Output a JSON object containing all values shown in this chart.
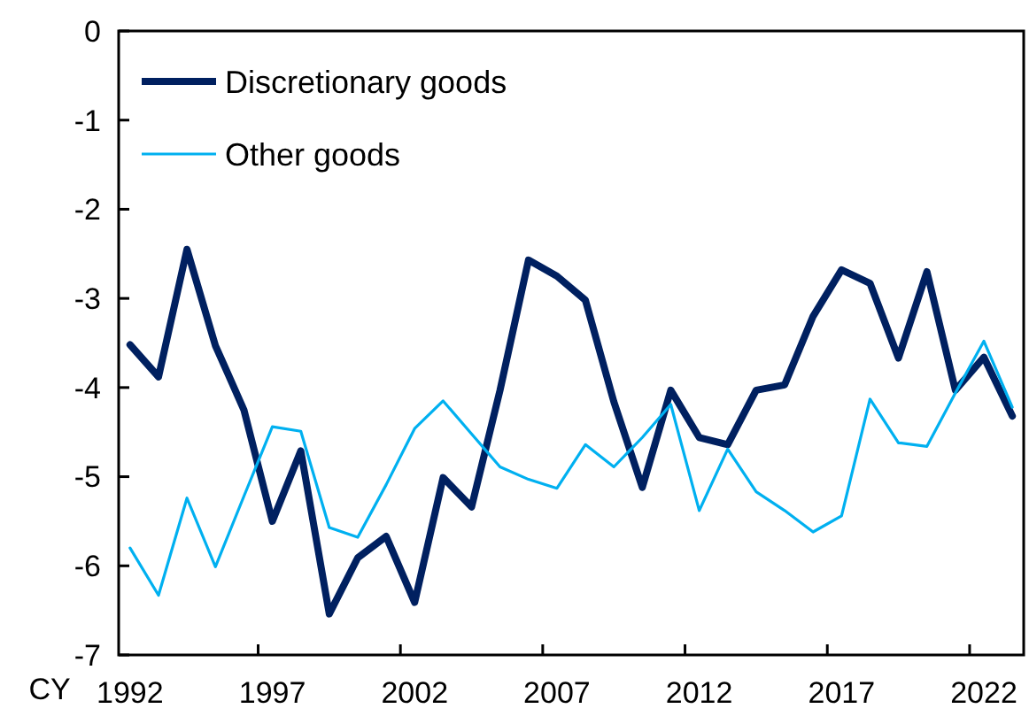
{
  "chart_data": {
    "type": "line",
    "xlabel": "CY",
    "categories": [
      "1992",
      null,
      null,
      null,
      null,
      "1997",
      null,
      null,
      null,
      null,
      "2002",
      null,
      null,
      null,
      null,
      "2007",
      null,
      null,
      null,
      null,
      "2012",
      null,
      null,
      null,
      null,
      "2017",
      null,
      null,
      null,
      null,
      "2022",
      null
    ],
    "series": [
      {
        "name": "Discretionary goods",
        "color": "#002060",
        "values": [
          -3.52,
          -3.88,
          -2.45,
          -3.53,
          -4.25,
          -5.5,
          -4.71,
          -6.54,
          -5.91,
          -5.67,
          -6.41,
          -5.01,
          -5.34,
          -4.03,
          -2.57,
          -2.75,
          -3.02,
          -4.16,
          -5.12,
          -4.03,
          -4.56,
          -4.64,
          -4.03,
          -3.97,
          -3.2,
          -2.68,
          -2.83,
          -3.67,
          -2.7,
          -4.03,
          -3.66,
          -4.32
        ]
      },
      {
        "name": "Other goods",
        "color": "#00b0f0",
        "values": [
          -5.8,
          -6.33,
          -5.24,
          -6.01,
          -5.22,
          -4.44,
          -4.49,
          -5.57,
          -5.68,
          -5.09,
          -4.46,
          -4.15,
          -4.52,
          -4.89,
          -5.03,
          -5.13,
          -4.64,
          -4.89,
          -4.56,
          -4.19,
          -5.38,
          -4.69,
          -5.17,
          -5.38,
          -5.62,
          -5.44,
          -4.13,
          -4.62,
          -4.66,
          -4.06,
          -3.48,
          -4.22
        ]
      }
    ],
    "ylim": [
      -7,
      0
    ],
    "yticks": [
      0,
      -1,
      -2,
      -3,
      -4,
      -5,
      -6,
      -7
    ],
    "grid": false,
    "legend": "top left",
    "marker": "none",
    "line_style": "solid"
  }
}
